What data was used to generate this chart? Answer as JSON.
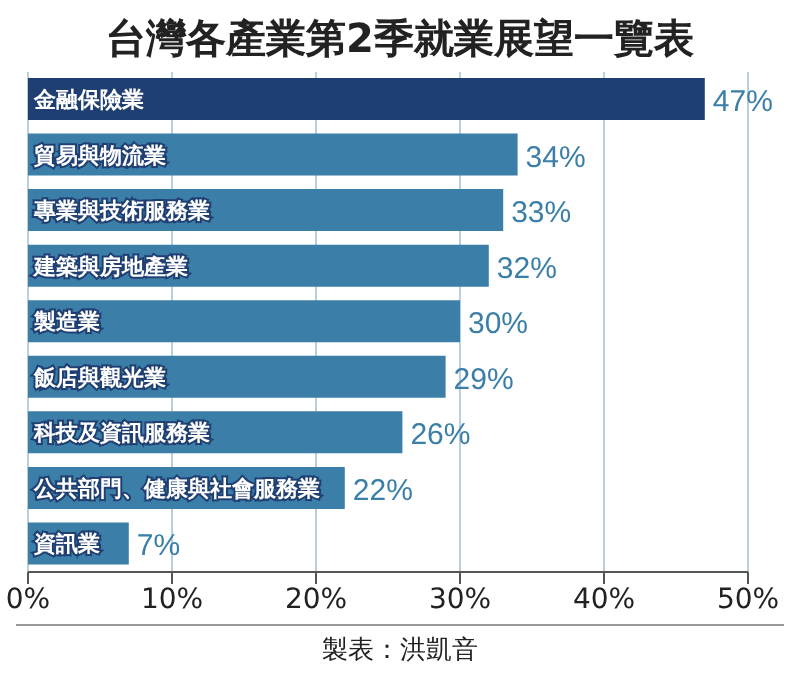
{
  "chart_data": {
    "type": "bar",
    "orientation": "horizontal",
    "title": "台灣各產業第2季就業展望一覽表",
    "categories": [
      "金融保險業",
      "貿易與物流業",
      "專業與技術服務業",
      "建築與房地產業",
      "製造業",
      "飯店與觀光業",
      "科技及資訊服務業",
      "公共部門、健康與社會服務業",
      "資訊業"
    ],
    "values": [
      47,
      34,
      33,
      32,
      30,
      29,
      26,
      22,
      7
    ],
    "colors": [
      "#1f3f73",
      "#3b7fa8",
      "#3b7fa8",
      "#3b7fa8",
      "#3b7fa8",
      "#3b7fa8",
      "#3b7fa8",
      "#3b7fa8",
      "#3b7fa8"
    ],
    "value_labels": [
      "47%",
      "34%",
      "33%",
      "32%",
      "30%",
      "29%",
      "26%",
      "22%",
      "7%"
    ],
    "xlim": [
      0,
      50
    ],
    "xticks": [
      {
        "value": 0,
        "label": "0%"
      },
      {
        "value": 10,
        "label": "10%"
      },
      {
        "value": 20,
        "label": "20%"
      },
      {
        "value": 30,
        "label": "30%"
      },
      {
        "value": 40,
        "label": "40%"
      },
      {
        "value": 50,
        "label": "50%"
      }
    ],
    "grid": "x",
    "annotations": [
      "製表：洪凱音"
    ]
  }
}
